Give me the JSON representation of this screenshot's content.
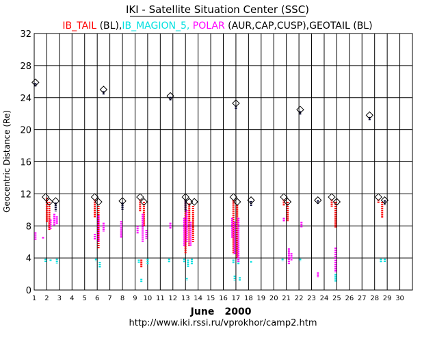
{
  "chart_data": {
    "type": "scatter",
    "title": "IKI - Satellite Situation Center (SSC)",
    "subtitle_parts": [
      {
        "text": "IB_TAIL",
        "color": "#ff0000"
      },
      {
        "text": " (BL),",
        "color": "#000000"
      },
      {
        "text": "IB_MAGION_5,",
        "color": "#00e0e0"
      },
      {
        "text": " POLAR",
        "color": "#ff00ff"
      },
      {
        "text": " (AUR,CAP,CUSP),GEOTAIL (BL)",
        "color": "#000000"
      }
    ],
    "ylabel": "Geocentric  Distance  (Re)",
    "xlabel_month": "June",
    "xlabel_year": "2000",
    "url": "http://www.iki.rssi.ru/vprokhor/camp2.htm",
    "xlim": [
      1,
      31
    ],
    "ylim": [
      0,
      32
    ],
    "x_ticks": [
      1,
      2,
      3,
      4,
      5,
      6,
      7,
      8,
      9,
      10,
      11,
      12,
      13,
      14,
      15,
      16,
      17,
      18,
      19,
      20,
      21,
      22,
      23,
      24,
      25,
      26,
      27,
      28,
      29,
      30
    ],
    "y_ticks": [
      0,
      4,
      8,
      12,
      16,
      20,
      24,
      28,
      32
    ],
    "grid": true,
    "colors": {
      "ib_tail": "#ff0000",
      "magion": "#00e0e0",
      "polar": "#ff00ff",
      "geotail": "#000033",
      "diamond": "#000000"
    },
    "series": [
      {
        "name": "IB_TAIL",
        "color": "#ff0000",
        "segments": [
          {
            "x": 2.0,
            "y_from": 11.5,
            "y_to": 8.5
          },
          {
            "x": 2.2,
            "y_from": 11.0,
            "y_to": 7.5
          },
          {
            "x": 5.8,
            "y_from": 11.3,
            "y_to": 9.0
          },
          {
            "x": 6.1,
            "y_from": 10.5,
            "y_to": 5.2
          },
          {
            "x": 9.4,
            "y_from": 11.3,
            "y_to": 9.8
          },
          {
            "x": 9.7,
            "y_from": 11.0,
            "y_to": 8.0
          },
          {
            "x": 9.5,
            "y_from": 3.8,
            "y_to": 2.8
          },
          {
            "x": 13.0,
            "y_from": 11.2,
            "y_to": 4.5
          },
          {
            "x": 13.3,
            "y_from": 10.8,
            "y_to": 5.5
          },
          {
            "x": 13.6,
            "y_from": 10.5,
            "y_to": 6.0
          },
          {
            "x": 16.8,
            "y_from": 11.2,
            "y_to": 4.5
          },
          {
            "x": 17.1,
            "y_from": 10.6,
            "y_to": 4.0
          },
          {
            "x": 20.8,
            "y_from": 11.3,
            "y_to": 10.5
          },
          {
            "x": 21.1,
            "y_from": 11.0,
            "y_to": 8.6
          },
          {
            "x": 24.6,
            "y_from": 11.3,
            "y_to": 10.4
          },
          {
            "x": 24.9,
            "y_from": 11.0,
            "y_to": 7.8
          },
          {
            "x": 28.3,
            "y_from": 11.3,
            "y_to": 10.8
          },
          {
            "x": 28.6,
            "y_from": 11.0,
            "y_to": 9.0
          }
        ]
      },
      {
        "name": "IB_MAGION_5",
        "color": "#00e0e0",
        "segments": [
          {
            "x": 1.9,
            "y_from": 3.9,
            "y_to": 3.5
          },
          {
            "x": 2.3,
            "y_from": 3.8,
            "y_to": 3.6
          },
          {
            "x": 2.8,
            "y_from": 3.9,
            "y_to": 3.3
          },
          {
            "x": 5.9,
            "y_from": 3.9,
            "y_to": 3.6
          },
          {
            "x": 6.2,
            "y_from": 3.5,
            "y_to": 2.8
          },
          {
            "x": 9.3,
            "y_from": 3.8,
            "y_to": 3.4
          },
          {
            "x": 9.5,
            "y_from": 1.4,
            "y_to": 1.0
          },
          {
            "x": 10.0,
            "y_from": 3.9,
            "y_to": 3.2
          },
          {
            "x": 11.7,
            "y_from": 3.9,
            "y_to": 3.4
          },
          {
            "x": 12.9,
            "y_from": 3.9,
            "y_to": 3.4
          },
          {
            "x": 13.1,
            "y_from": 1.5,
            "y_to": 1.2
          },
          {
            "x": 13.2,
            "y_from": 3.8,
            "y_to": 2.9
          },
          {
            "x": 13.5,
            "y_from": 3.9,
            "y_to": 3.2
          },
          {
            "x": 16.8,
            "y_from": 3.8,
            "y_to": 3.3
          },
          {
            "x": 16.9,
            "y_from": 1.8,
            "y_to": 1.2
          },
          {
            "x": 17.2,
            "y_from": 3.9,
            "y_to": 3.2
          },
          {
            "x": 17.3,
            "y_from": 1.6,
            "y_to": 1.1
          },
          {
            "x": 18.2,
            "y_from": 3.6,
            "y_to": 3.4
          },
          {
            "x": 20.7,
            "y_from": 3.9,
            "y_to": 3.6
          },
          {
            "x": 22.1,
            "y_from": 3.9,
            "y_to": 3.6
          },
          {
            "x": 24.9,
            "y_from": 2.0,
            "y_to": 1.0
          },
          {
            "x": 28.5,
            "y_from": 3.9,
            "y_to": 3.4
          },
          {
            "x": 28.8,
            "y_from": 3.9,
            "y_to": 3.5
          }
        ]
      },
      {
        "name": "POLAR",
        "color": "#ff00ff",
        "segments": [
          {
            "x": 1.1,
            "y_from": 7.2,
            "y_to": 6.2
          },
          {
            "x": 1.7,
            "y_from": 6.6,
            "y_to": 6.4
          },
          {
            "x": 2.3,
            "y_from": 8.8,
            "y_to": 7.6
          },
          {
            "x": 2.6,
            "y_from": 9.5,
            "y_to": 8.0
          },
          {
            "x": 2.8,
            "y_from": 9.2,
            "y_to": 8.2
          },
          {
            "x": 5.8,
            "y_from": 7.0,
            "y_to": 6.3
          },
          {
            "x": 6.1,
            "y_from": 9.3,
            "y_to": 6.0
          },
          {
            "x": 6.5,
            "y_from": 8.4,
            "y_to": 7.3
          },
          {
            "x": 7.9,
            "y_from": 8.6,
            "y_to": 6.5
          },
          {
            "x": 9.2,
            "y_from": 8.0,
            "y_to": 7.0
          },
          {
            "x": 9.6,
            "y_from": 9.5,
            "y_to": 6.0
          },
          {
            "x": 9.9,
            "y_from": 7.5,
            "y_to": 6.4
          },
          {
            "x": 11.8,
            "y_from": 8.4,
            "y_to": 7.6
          },
          {
            "x": 12.9,
            "y_from": 9.0,
            "y_to": 5.5
          },
          {
            "x": 13.1,
            "y_from": 10.0,
            "y_to": 6.0
          },
          {
            "x": 13.4,
            "y_from": 8.5,
            "y_to": 5.5
          },
          {
            "x": 16.7,
            "y_from": 9.0,
            "y_to": 6.5
          },
          {
            "x": 16.9,
            "y_from": 8.5,
            "y_to": 4.5
          },
          {
            "x": 17.2,
            "y_from": 9.0,
            "y_to": 3.5
          },
          {
            "x": 20.8,
            "y_from": 9.0,
            "y_to": 8.5
          },
          {
            "x": 21.2,
            "y_from": 5.2,
            "y_to": 3.2
          },
          {
            "x": 21.4,
            "y_from": 4.6,
            "y_to": 3.7
          },
          {
            "x": 22.2,
            "y_from": 8.5,
            "y_to": 7.8
          },
          {
            "x": 23.5,
            "y_from": 2.2,
            "y_to": 1.6
          },
          {
            "x": 24.9,
            "y_from": 5.3,
            "y_to": 2.2
          }
        ]
      },
      {
        "name": "GEOTAIL",
        "color": "#000033",
        "segments": [
          {
            "x": 1.1,
            "y_from": 25.8,
            "y_to": 25.4
          },
          {
            "x": 2.7,
            "y_from": 10.9,
            "y_to": 9.8
          },
          {
            "x": 6.5,
            "y_from": 24.8,
            "y_to": 24.4
          },
          {
            "x": 8.0,
            "y_from": 10.9,
            "y_to": 10.0
          },
          {
            "x": 11.8,
            "y_from": 24.1,
            "y_to": 23.6
          },
          {
            "x": 13.0,
            "y_from": 11.2,
            "y_to": 9.8
          },
          {
            "x": 17.0,
            "y_from": 23.0,
            "y_to": 22.6
          },
          {
            "x": 18.2,
            "y_from": 11.1,
            "y_to": 10.5
          },
          {
            "x": 22.1,
            "y_from": 22.3,
            "y_to": 21.9
          },
          {
            "x": 23.5,
            "y_from": 11.2,
            "y_to": 10.7
          },
          {
            "x": 27.6,
            "y_from": 21.6,
            "y_to": 21.2
          },
          {
            "x": 28.8,
            "y_from": 11.2,
            "y_to": 10.6
          }
        ]
      }
    ],
    "markers": [
      {
        "x": 1.1,
        "y": 25.9
      },
      {
        "x": 1.9,
        "y": 11.6
      },
      {
        "x": 2.2,
        "y": 11.0
      },
      {
        "x": 2.7,
        "y": 11.1
      },
      {
        "x": 5.8,
        "y": 11.6
      },
      {
        "x": 6.1,
        "y": 11.0
      },
      {
        "x": 6.5,
        "y": 25.0
      },
      {
        "x": 8.0,
        "y": 11.1
      },
      {
        "x": 9.4,
        "y": 11.6
      },
      {
        "x": 9.7,
        "y": 11.0
      },
      {
        "x": 11.8,
        "y": 24.2
      },
      {
        "x": 13.0,
        "y": 11.6
      },
      {
        "x": 13.3,
        "y": 11.0
      },
      {
        "x": 13.7,
        "y": 11.0
      },
      {
        "x": 16.8,
        "y": 11.6
      },
      {
        "x": 17.1,
        "y": 11.0
      },
      {
        "x": 17.0,
        "y": 23.3
      },
      {
        "x": 18.2,
        "y": 11.2
      },
      {
        "x": 20.8,
        "y": 11.6
      },
      {
        "x": 21.1,
        "y": 11.0
      },
      {
        "x": 22.1,
        "y": 22.5
      },
      {
        "x": 23.5,
        "y": 11.2
      },
      {
        "x": 24.6,
        "y": 11.6
      },
      {
        "x": 25.0,
        "y": 11.0
      },
      {
        "x": 27.6,
        "y": 21.8
      },
      {
        "x": 28.3,
        "y": 11.6
      },
      {
        "x": 28.8,
        "y": 11.2
      }
    ]
  }
}
